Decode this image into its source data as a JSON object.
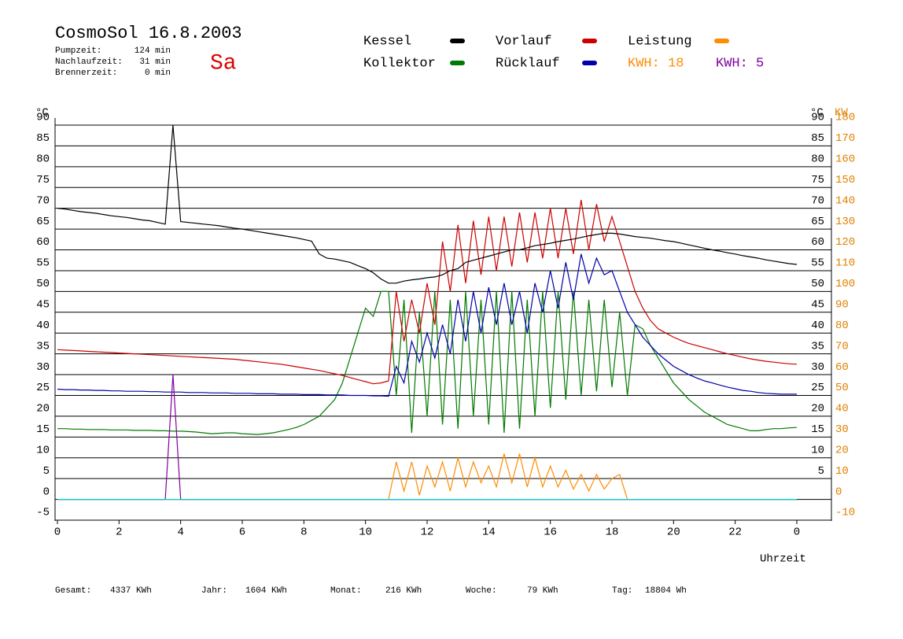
{
  "chart_data": {
    "type": "line",
    "title": "CosmoSol 16.8.2003",
    "day": "Sa",
    "info": [
      {
        "label": "Pumpzeit:",
        "value": "124 min"
      },
      {
        "label": "Nachlaufzeit:",
        "value": "31 min"
      },
      {
        "label": "Brennerzeit:",
        "value": "0 min"
      }
    ],
    "kwh_labels": [
      {
        "text": "KWH: 18",
        "color": "#ff8c00"
      },
      {
        "text": "KWH: 5",
        "color": "#8000a0"
      }
    ],
    "y_label": "°C",
    "y_right_label": "°C",
    "y2_label": "KW",
    "x_label": "Uhrzeit",
    "totals": [
      {
        "label": "Gesamt:",
        "value": "4337 KWh"
      },
      {
        "label": "Jahr:",
        "value": "1604 KWh"
      },
      {
        "label": "Monat:",
        "value": "216 KWh"
      },
      {
        "label": "Woche:",
        "value": "79 KWh"
      },
      {
        "label": "Tag:",
        "value": "18804 Wh"
      }
    ],
    "xlim": [
      0,
      24
    ],
    "xticks": [
      0,
      2,
      4,
      6,
      8,
      10,
      12,
      14,
      16,
      18,
      20,
      22,
      {
        "value": 24,
        "label": "0"
      }
    ],
    "ylim": [
      -5,
      90
    ],
    "yticks": [
      -5,
      0,
      5,
      10,
      15,
      20,
      25,
      30,
      35,
      40,
      45,
      50,
      55,
      60,
      65,
      70,
      75,
      80,
      85,
      90
    ],
    "y_right_ticks": [
      5,
      10,
      15,
      20,
      25,
      30,
      35,
      40,
      45,
      50,
      55,
      60,
      65,
      70,
      75,
      80,
      85,
      90
    ],
    "y2lim": [
      -10,
      180
    ],
    "y2ticks": [
      -10,
      0,
      10,
      20,
      30,
      40,
      50,
      60,
      70,
      80,
      90,
      100,
      110,
      120,
      130,
      140,
      150,
      160,
      170,
      180
    ],
    "grid": true,
    "x": [
      0,
      0.25,
      0.5,
      0.75,
      1,
      1.25,
      1.5,
      1.75,
      2,
      2.25,
      2.5,
      2.75,
      3,
      3.25,
      3.5,
      3.75,
      4,
      4.25,
      4.5,
      4.75,
      5,
      5.25,
      5.5,
      5.75,
      6,
      6.25,
      6.5,
      6.75,
      7,
      7.25,
      7.5,
      7.75,
      8,
      8.25,
      8.5,
      8.75,
      9,
      9.25,
      9.5,
      9.75,
      10,
      10.25,
      10.5,
      10.75,
      11,
      11.25,
      11.5,
      11.75,
      12,
      12.25,
      12.5,
      12.75,
      13,
      13.25,
      13.5,
      13.75,
      14,
      14.25,
      14.5,
      14.75,
      15,
      15.25,
      15.5,
      15.75,
      16,
      16.25,
      16.5,
      16.75,
      17,
      17.25,
      17.5,
      17.75,
      18,
      18.25,
      18.5,
      18.75,
      19,
      19.25,
      19.5,
      19.75,
      20,
      20.25,
      20.5,
      20.75,
      21,
      21.25,
      21.5,
      21.75,
      22,
      22.25,
      22.5,
      22.75,
      23,
      23.25,
      23.5,
      23.75,
      24
    ],
    "series": [
      {
        "name": "Kessel",
        "color": "#000000",
        "values": [
          70,
          69.8,
          69.5,
          69.2,
          69,
          68.8,
          68.5,
          68.2,
          68,
          67.8,
          67.5,
          67.2,
          67,
          66.6,
          66.2,
          90,
          66.8,
          66.6,
          66.4,
          66.2,
          66,
          65.8,
          65.5,
          65.2,
          65,
          64.7,
          64.4,
          64.1,
          63.8,
          63.5,
          63.2,
          62.9,
          62.5,
          62.1,
          59,
          58,
          57.8,
          57.4,
          57,
          56.2,
          55.5,
          54.5,
          53,
          52,
          52,
          52.5,
          52.8,
          53,
          53.3,
          53.5,
          54,
          55,
          55.5,
          57,
          57.5,
          58,
          58.5,
          59,
          59.5,
          60,
          60,
          60.5,
          61,
          61.3,
          61.6,
          62,
          62.3,
          62.6,
          63,
          63.4,
          63.7,
          64,
          64,
          63.8,
          63.5,
          63.2,
          63,
          62.8,
          62.5,
          62.2,
          62,
          61.6,
          61.2,
          60.8,
          60.4,
          60,
          59.7,
          59.3,
          59,
          58.6,
          58.3,
          58,
          57.6,
          57.3,
          57,
          56.7,
          56.5
        ]
      },
      {
        "name": "Kollektor",
        "color": "#007a00",
        "values": [
          17,
          17,
          16.9,
          16.9,
          16.8,
          16.8,
          16.8,
          16.7,
          16.7,
          16.7,
          16.6,
          16.6,
          16.6,
          16.5,
          16.5,
          16.4,
          16.4,
          16.3,
          16.2,
          16,
          15.8,
          15.9,
          16,
          16,
          15.8,
          15.7,
          15.6,
          15.8,
          16,
          16.4,
          16.8,
          17.3,
          18,
          19,
          20,
          22,
          24,
          28,
          34,
          40,
          46,
          44,
          50,
          50,
          25,
          48,
          16,
          45,
          20,
          50,
          18,
          48,
          17,
          50,
          20,
          48,
          18,
          50,
          16,
          50,
          17,
          48,
          20,
          50,
          22,
          50,
          24,
          50,
          25,
          48,
          26,
          48,
          27,
          45,
          25,
          42,
          41,
          37,
          34,
          31,
          28,
          26,
          24,
          22.5,
          21,
          20,
          19,
          18,
          17.5,
          17,
          16.5,
          16.5,
          16.8,
          17,
          17,
          17.2,
          17.3
        ]
      },
      {
        "name": "Vorlauf",
        "color": "#cc0000",
        "values": [
          36,
          35.9,
          35.8,
          35.7,
          35.6,
          35.5,
          35.4,
          35.3,
          35.2,
          35.1,
          35,
          34.9,
          34.8,
          34.7,
          34.6,
          34.5,
          34.4,
          34.3,
          34.2,
          34.1,
          34,
          33.9,
          33.8,
          33.7,
          33.5,
          33.3,
          33.1,
          32.9,
          32.7,
          32.5,
          32.2,
          31.9,
          31.6,
          31.3,
          31,
          30.6,
          30.2,
          29.8,
          29.3,
          28.8,
          28.3,
          27.8,
          28,
          28.5,
          50,
          38,
          48,
          40,
          52,
          42,
          62,
          50,
          66,
          52,
          67,
          54,
          68,
          55,
          68,
          56,
          69,
          57,
          69,
          58,
          70,
          58,
          70,
          59,
          72,
          60,
          71,
          62,
          68,
          62,
          56,
          50,
          46,
          43,
          41,
          40,
          39,
          38.2,
          37.5,
          37,
          36.5,
          36,
          35.5,
          35,
          34.6,
          34.2,
          33.8,
          33.5,
          33.2,
          33,
          32.8,
          32.6,
          32.5
        ]
      },
      {
        "name": "Rücklauf",
        "color": "#0000aa",
        "values": [
          26.5,
          26.4,
          26.4,
          26.3,
          26.3,
          26.2,
          26.2,
          26.1,
          26.1,
          26,
          26,
          26,
          25.9,
          25.9,
          25.8,
          25.8,
          25.8,
          25.7,
          25.7,
          25.7,
          25.6,
          25.6,
          25.6,
          25.5,
          25.5,
          25.5,
          25.4,
          25.4,
          25.4,
          25.3,
          25.3,
          25.3,
          25.2,
          25.2,
          25.2,
          25.1,
          25.1,
          25.1,
          25,
          25,
          25,
          24.9,
          24.9,
          24.8,
          32,
          28,
          38,
          33,
          40,
          34,
          42,
          35,
          48,
          38,
          50,
          40,
          51,
          42,
          52,
          42,
          50,
          40,
          52,
          45,
          55,
          46,
          57,
          48,
          59,
          52,
          58,
          54,
          55,
          50,
          45,
          42,
          39,
          37,
          35,
          33.5,
          32,
          31,
          30,
          29.2,
          28.5,
          28,
          27.5,
          27,
          26.6,
          26.2,
          26,
          25.7,
          25.5,
          25.4,
          25.3,
          25.3,
          25.3
        ]
      },
      {
        "name": "Leistung",
        "color": "#ff8c00",
        "axis": "y2",
        "values": [
          0,
          0,
          0,
          0,
          0,
          0,
          0,
          0,
          0,
          0,
          0,
          0,
          0,
          0,
          0,
          0,
          0,
          0,
          0,
          0,
          0,
          0,
          0,
          0,
          0,
          0,
          0,
          0,
          0,
          0,
          0,
          0,
          0,
          0,
          0,
          0,
          0,
          0,
          0,
          0,
          0,
          0,
          0,
          0,
          18,
          4,
          18,
          2,
          16,
          6,
          18,
          4,
          20,
          6,
          18,
          8,
          16,
          6,
          22,
          8,
          22,
          6,
          20,
          6,
          16,
          6,
          14,
          5,
          12,
          4,
          12,
          5,
          10,
          12,
          0,
          0,
          0,
          0,
          0,
          0,
          0,
          0,
          0,
          0,
          0,
          0,
          0,
          0,
          0,
          0,
          0,
          0,
          0,
          0,
          0,
          0,
          0
        ]
      },
      {
        "color": "#8000a0",
        "values": [
          0,
          0,
          0,
          0,
          0,
          0,
          0,
          0,
          0,
          0,
          0,
          0,
          0,
          0,
          0,
          30,
          0,
          0,
          0,
          0,
          0,
          0,
          0,
          0,
          0,
          0,
          0,
          0,
          0,
          0,
          0,
          0,
          0,
          0,
          0,
          0,
          0,
          0,
          0,
          0,
          0,
          0,
          0,
          0,
          0,
          0,
          0,
          0,
          0,
          0,
          0,
          0,
          0,
          0,
          0,
          0,
          0,
          0,
          0,
          0,
          0,
          0,
          0,
          0,
          0,
          0,
          0,
          0,
          0,
          0,
          0,
          0,
          0,
          0,
          0,
          0,
          0,
          0,
          0,
          0,
          0,
          0,
          0,
          0,
          0,
          0,
          0,
          0,
          0,
          0,
          0,
          0,
          0,
          0,
          0,
          0,
          0
        ]
      },
      {
        "color": "#00d8d8",
        "values": [
          0,
          0,
          0,
          0,
          0,
          0,
          0,
          0,
          0,
          0,
          0,
          0,
          0,
          0,
          0,
          0,
          0,
          0,
          0,
          0,
          0,
          0,
          0,
          0,
          0,
          0,
          0,
          0,
          0,
          0,
          0,
          0,
          0,
          0,
          0,
          0,
          0,
          0,
          0,
          0,
          0,
          0,
          0,
          0,
          0,
          0,
          0,
          0,
          0,
          0,
          0,
          0,
          0,
          0,
          0,
          0,
          0,
          0,
          0,
          0,
          0,
          0,
          0,
          0,
          0,
          0,
          0,
          0,
          0,
          0,
          0,
          0,
          0,
          0,
          0,
          0,
          0,
          0,
          0,
          0,
          0,
          0,
          0,
          0,
          0,
          0,
          0,
          0,
          0,
          0,
          0,
          0,
          0,
          0,
          0,
          0,
          0
        ]
      }
    ]
  }
}
